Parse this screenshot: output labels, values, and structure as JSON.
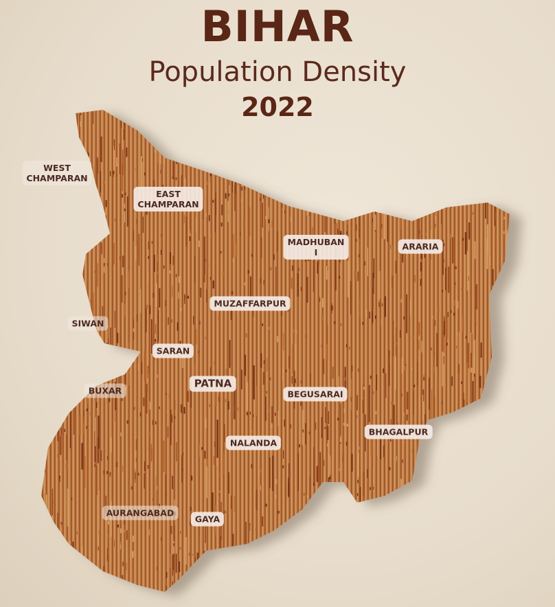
{
  "title": "BIHAR",
  "subtitle": "Population Density",
  "year": "2022",
  "colors": {
    "title": "#5a2616",
    "background": "#ebe2d3",
    "map_base": "#b5703a",
    "map_spike": "#8a3f1c",
    "label_text": "#4a2a22"
  },
  "map_style": "3D spike population density map",
  "districts": [
    {
      "name": "WEST\nCHAMPARAN"
    },
    {
      "name": "EAST\nCHAMPARAN"
    },
    {
      "name": "MADHUBAN\nI"
    },
    {
      "name": "ARARIA"
    },
    {
      "name": "MUZAFFARPUR"
    },
    {
      "name": "SIWAN"
    },
    {
      "name": "SARAN"
    },
    {
      "name": "PATNA"
    },
    {
      "name": "BUXAR"
    },
    {
      "name": "BEGUSARAI"
    },
    {
      "name": "BHAGALPUR"
    },
    {
      "name": "NALANDA"
    },
    {
      "name": "AURANGABAD"
    },
    {
      "name": "GAYA"
    }
  ]
}
